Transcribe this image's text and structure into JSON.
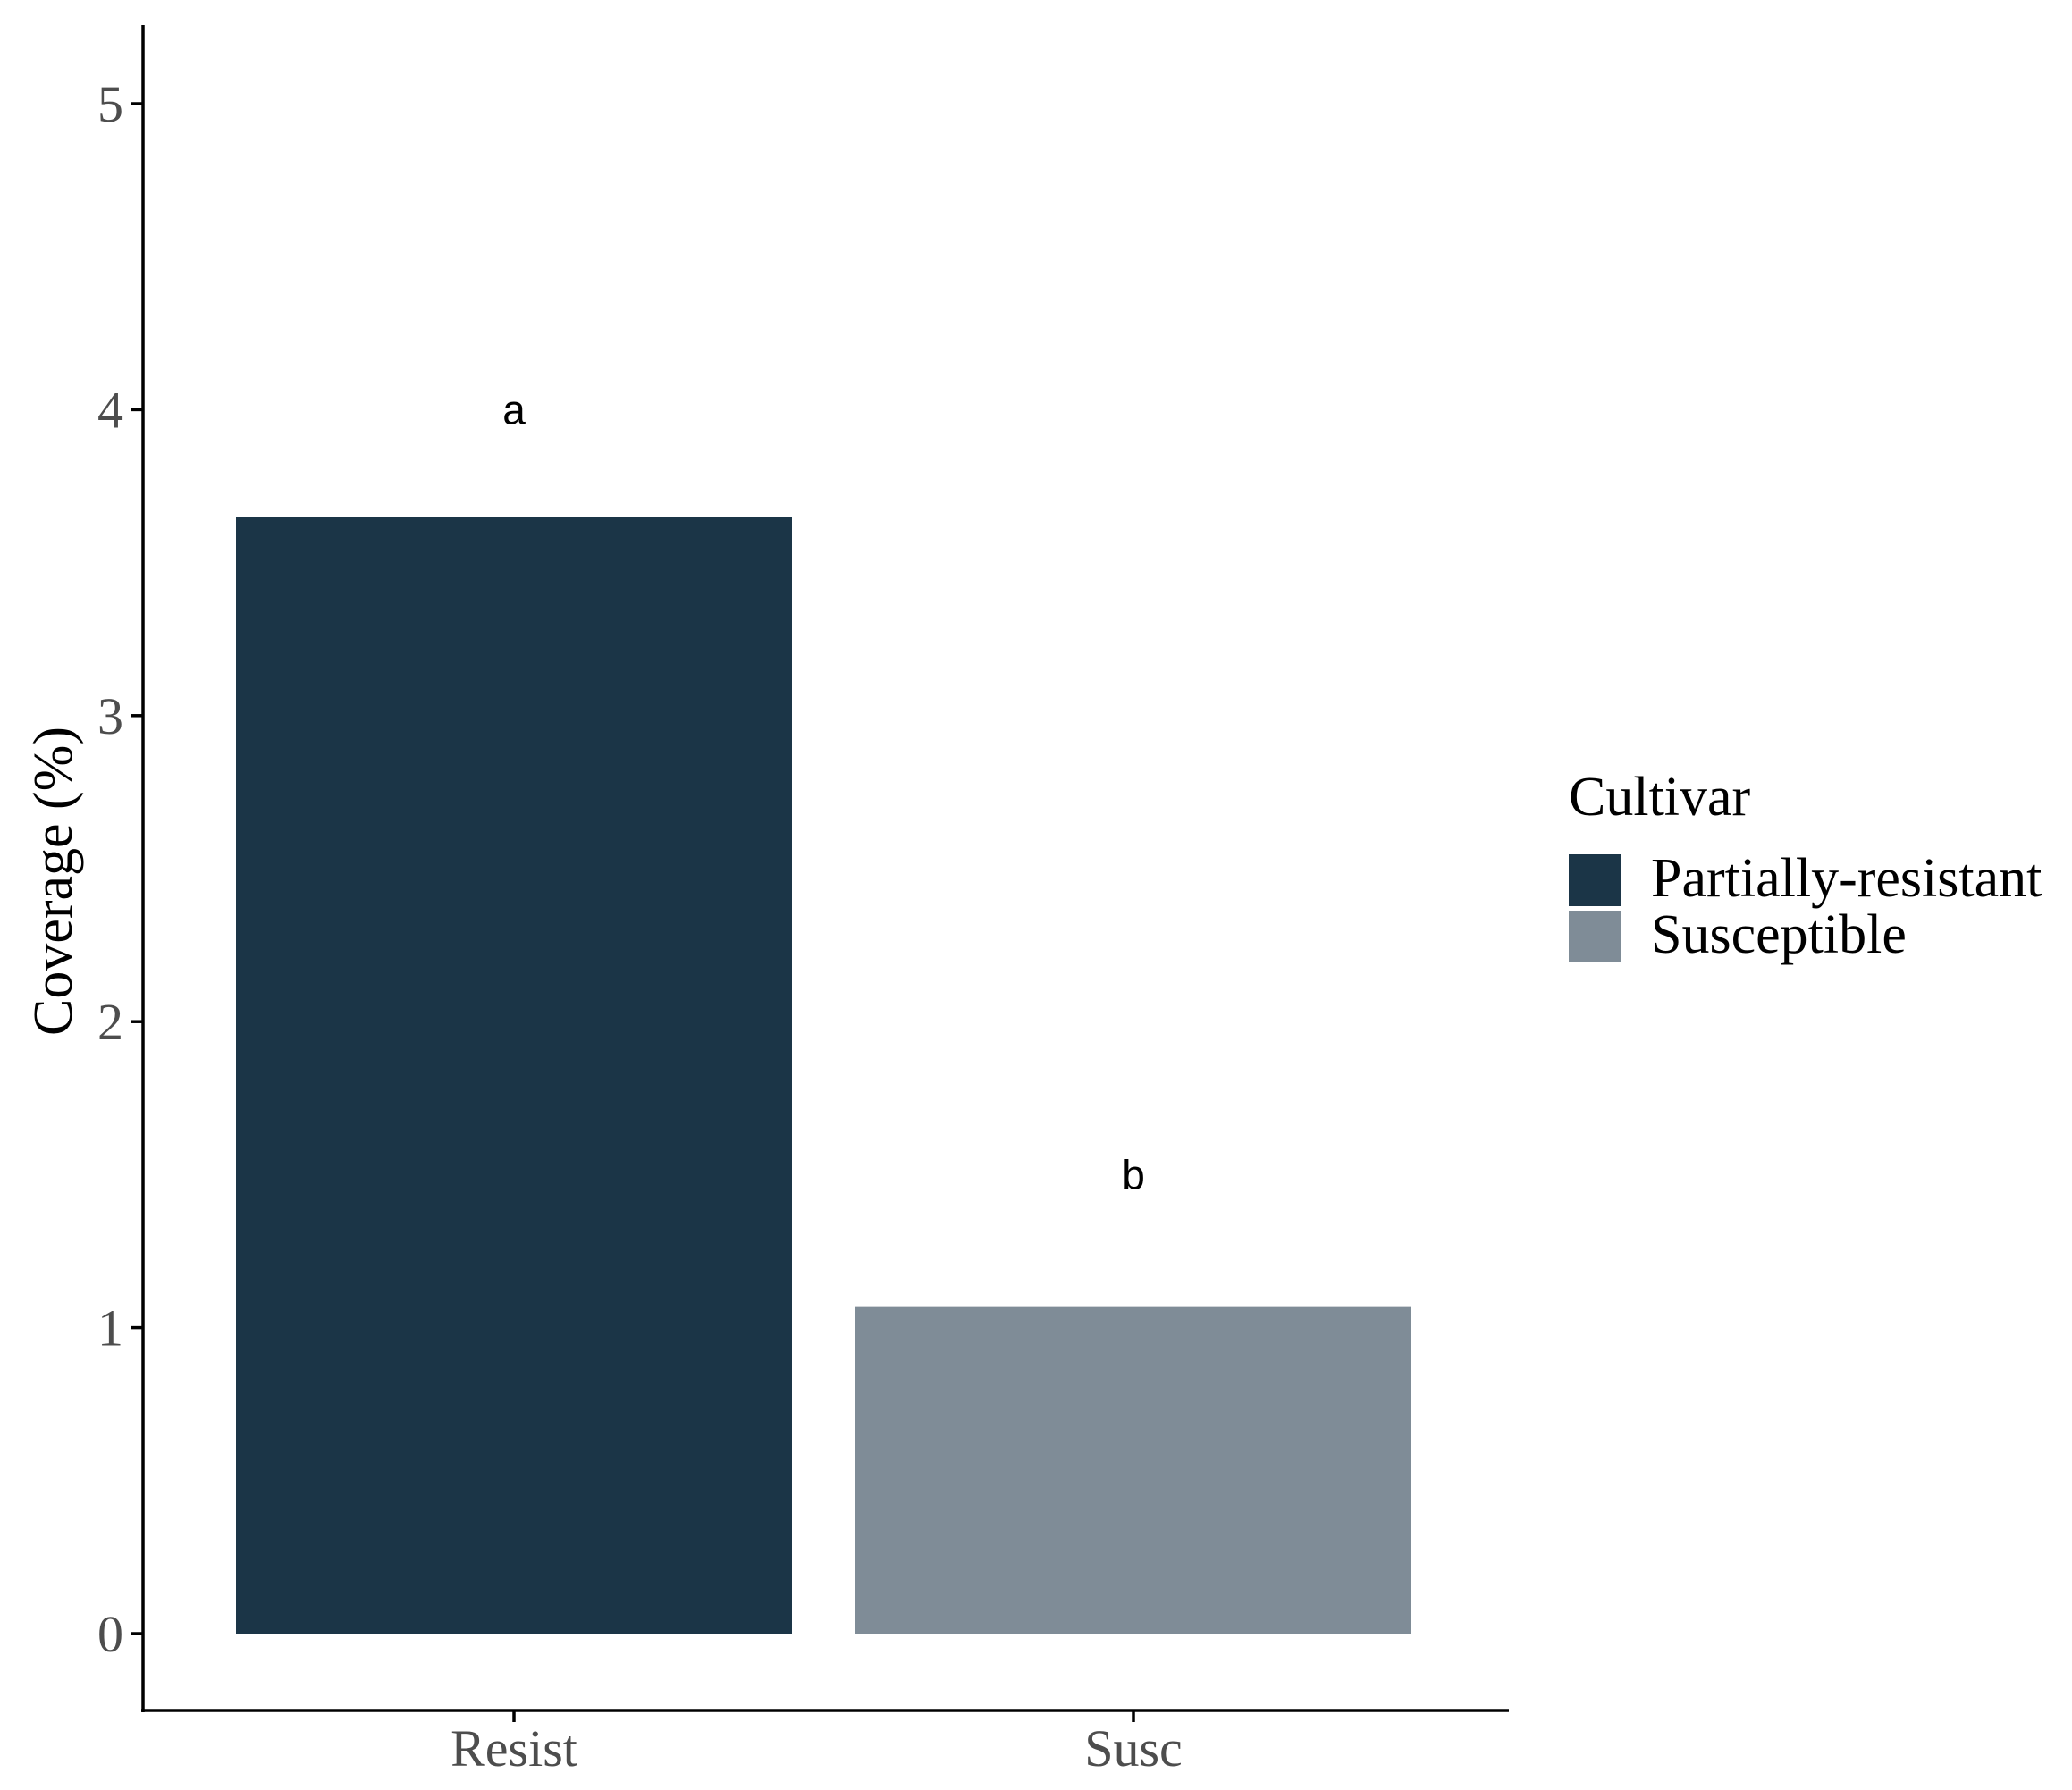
{
  "chart_data": {
    "type": "bar",
    "categories": [
      "Resist",
      "Susc"
    ],
    "series": [
      {
        "name": "Partially-resistant",
        "values": [
          3.65,
          null
        ]
      },
      {
        "name": "Susceptible",
        "values": [
          null,
          1.07
        ]
      }
    ],
    "values": [
      3.65,
      1.07
    ],
    "bar_colors": [
      "#1b3547",
      "#7f8c97"
    ],
    "annotations": [
      {
        "category": "Resist",
        "text": "a",
        "y": 4.0
      },
      {
        "category": "Susc",
        "text": "b",
        "y": 1.5
      }
    ],
    "title": "",
    "xlabel": "",
    "ylabel": "Coverage (%)",
    "ylim": [
      -0.25,
      5.25
    ],
    "yticks": [
      0,
      1,
      2,
      3,
      4,
      5
    ],
    "ytick_labels": [
      "0",
      "1",
      "2",
      "3",
      "4",
      "5"
    ],
    "grid": false,
    "legend": {
      "title": "Cultivar",
      "placement": "right",
      "entries": [
        {
          "label": "Partially-resistant",
          "color": "#1b3547"
        },
        {
          "label": "Susceptible",
          "color": "#7f8c97"
        }
      ]
    }
  }
}
